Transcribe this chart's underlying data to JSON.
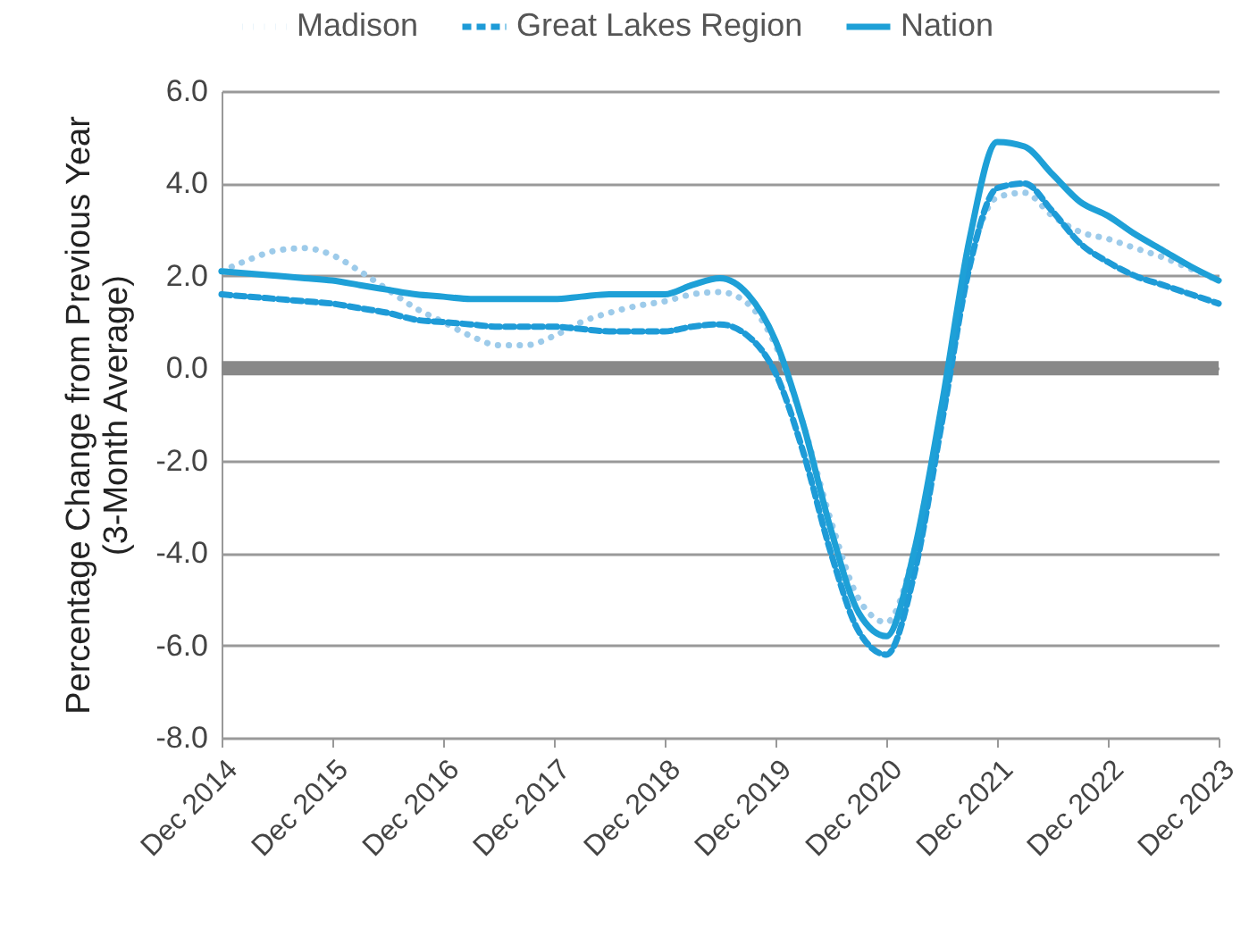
{
  "chart_data": {
    "type": "line",
    "ylabel": "Percentage Change from Previous Year\n(3-Month Average)",
    "x": [
      "2014-12",
      "2015-03",
      "2015-06",
      "2015-09",
      "2015-12",
      "2016-03",
      "2016-06",
      "2016-09",
      "2016-12",
      "2017-03",
      "2017-06",
      "2017-09",
      "2017-12",
      "2018-03",
      "2018-06",
      "2018-09",
      "2018-12",
      "2019-03",
      "2019-06",
      "2019-09",
      "2019-12",
      "2020-03",
      "2020-06",
      "2020-09",
      "2020-12",
      "2021-03",
      "2021-06",
      "2021-09",
      "2021-12",
      "2022-03",
      "2022-06",
      "2022-09",
      "2022-12",
      "2023-03",
      "2023-06",
      "2023-09",
      "2023-12"
    ],
    "series": [
      {
        "name": "Madison",
        "color": "#9dcbea",
        "line_style": "dotted",
        "values": [
          2.1,
          2.35,
          2.55,
          2.6,
          2.45,
          2.1,
          1.7,
          1.3,
          1.0,
          0.7,
          0.5,
          0.5,
          0.7,
          1.0,
          1.2,
          1.35,
          1.45,
          1.6,
          1.65,
          1.4,
          0.5,
          -1.2,
          -3.3,
          -5.0,
          -5.5,
          -4.0,
          -0.9,
          2.3,
          3.7,
          3.8,
          3.3,
          2.95,
          2.8,
          2.6,
          2.4,
          2.15,
          1.9
        ]
      },
      {
        "name": "Great Lakes Region",
        "color": "#1e9bd7",
        "line_style": "dashed",
        "values": [
          1.6,
          1.55,
          1.5,
          1.45,
          1.4,
          1.3,
          1.2,
          1.05,
          1.0,
          0.95,
          0.9,
          0.9,
          0.9,
          0.85,
          0.8,
          0.8,
          0.8,
          0.9,
          0.95,
          0.7,
          -0.1,
          -1.8,
          -4.0,
          -5.7,
          -6.2,
          -4.5,
          -1.2,
          2.2,
          3.9,
          4.0,
          3.4,
          2.7,
          2.3,
          2.0,
          1.8,
          1.6,
          1.4
        ]
      },
      {
        "name": "Nation",
        "color": "#1ea0d7",
        "line_style": "solid",
        "values": [
          2.1,
          2.05,
          2.0,
          1.95,
          1.9,
          1.8,
          1.7,
          1.6,
          1.55,
          1.5,
          1.5,
          1.5,
          1.5,
          1.55,
          1.6,
          1.6,
          1.6,
          1.8,
          1.95,
          1.6,
          0.6,
          -1.2,
          -3.5,
          -5.3,
          -5.8,
          -4.0,
          -0.8,
          2.8,
          4.9,
          4.8,
          4.2,
          3.6,
          3.3,
          2.9,
          2.55,
          2.2,
          1.9
        ]
      }
    ],
    "xlim": [
      "2014-12",
      "2023-12"
    ],
    "xticks": [
      {
        "value": "2014-12",
        "label": "Dec 2014"
      },
      {
        "value": "2015-12",
        "label": "Dec 2015"
      },
      {
        "value": "2016-12",
        "label": "Dec 2016"
      },
      {
        "value": "2017-12",
        "label": "Dec 2017"
      },
      {
        "value": "2018-12",
        "label": "Dec 2018"
      },
      {
        "value": "2019-12",
        "label": "Dec 2019"
      },
      {
        "value": "2020-12",
        "label": "Dec 2020"
      },
      {
        "value": "2021-12",
        "label": "Dec 2021"
      },
      {
        "value": "2022-12",
        "label": "Dec 2022"
      },
      {
        "value": "2023-12",
        "label": "Dec 2023"
      }
    ],
    "ylim": [
      -8,
      6
    ],
    "yticks": [
      {
        "value": -8,
        "label": "-8.0"
      },
      {
        "value": -6,
        "label": "-6.0"
      },
      {
        "value": -4,
        "label": "-4.0"
      },
      {
        "value": -2,
        "label": "-2.0"
      },
      {
        "value": 0,
        "label": "0.0"
      },
      {
        "value": 2,
        "label": "2.0"
      },
      {
        "value": 4,
        "label": "4.0"
      },
      {
        "value": 6,
        "label": "6.0"
      }
    ],
    "ref_lines": [
      {
        "axis": "y",
        "value": 0,
        "color": "#888888"
      }
    ],
    "grid": "y",
    "legend": "top",
    "marker": "none"
  }
}
